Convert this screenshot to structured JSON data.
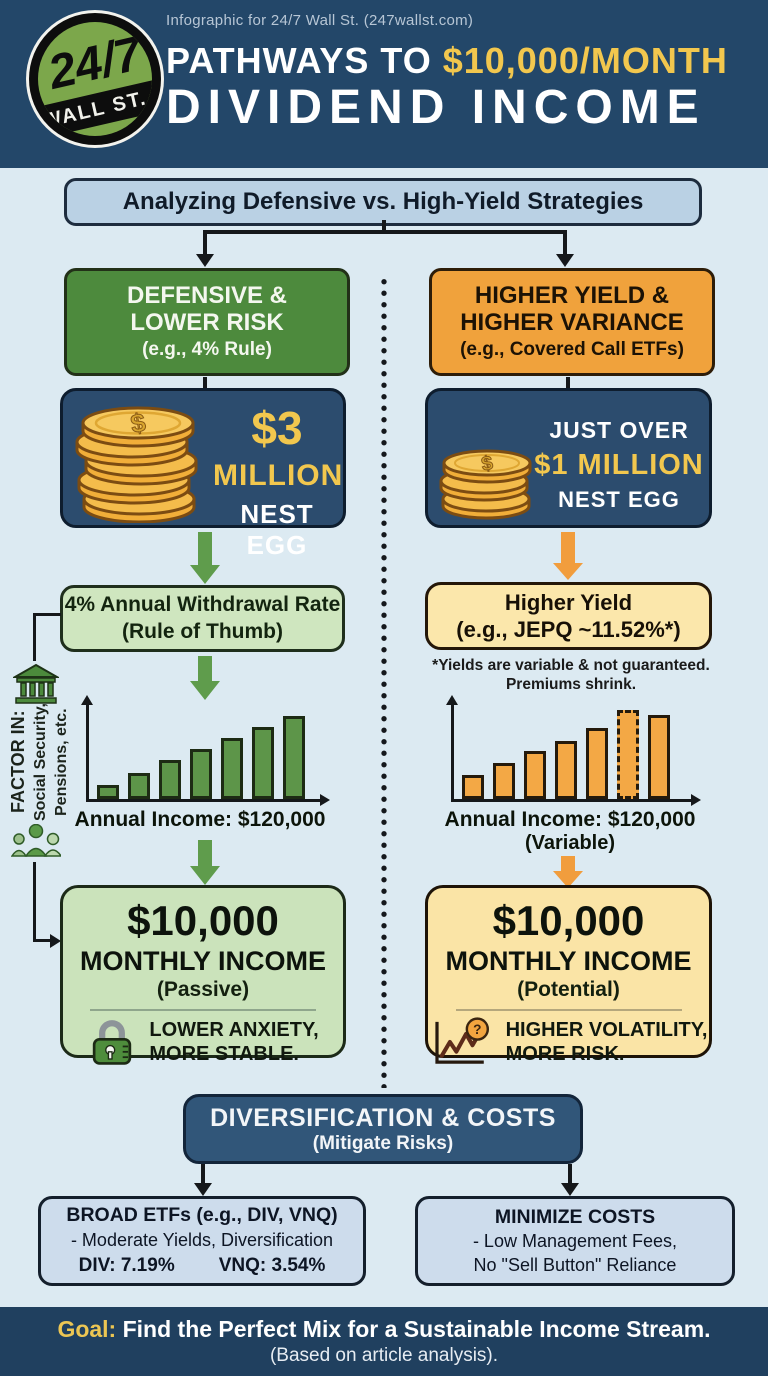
{
  "colors": {
    "header_navy": "#234769",
    "body_bg": "#dceaf2",
    "accent_yellow": "#f2c74e",
    "green": "#4d8a3d",
    "light_green": "#cfe6bf",
    "orange": "#f0a23c",
    "light_yellow": "#fbe7ab",
    "navy_box": "#2c4c6e",
    "light_blue_box": "#cddcec"
  },
  "header": {
    "credit": "Infographic for 24/7 Wall St. (247wallst.com)",
    "logo_top": "24/7",
    "logo_bottom": "WALL ST.",
    "title_white": "PATHWAYS TO ",
    "title_yellow": "$10,000/MONTH",
    "title_line2": "DIVIDEND INCOME"
  },
  "banner": "Analyzing Defensive vs. High-Yield Strategies",
  "left_column": {
    "strategy_title_line1": "DEFENSIVE &",
    "strategy_title_line2": "LOWER RISK",
    "strategy_subtitle": "(e.g., 4% Rule)",
    "nest_amount": "$3",
    "nest_unit": "MILLION",
    "nest_label": "NEST EGG",
    "withdrawal_line1": "4% Annual Withdrawal Rate",
    "withdrawal_line2": "(Rule of Thumb)",
    "chart_label": "Annual Income: $120,000",
    "income_amount": "$10,000",
    "income_label": "MONTHLY INCOME",
    "income_qualifier": "(Passive)",
    "income_note_line1": "LOWER ANXIETY,",
    "income_note_line2": "MORE STABLE."
  },
  "factor_in": {
    "title": "FACTOR IN:",
    "line1": "Social Security,",
    "line2": "Pensions, etc."
  },
  "right_column": {
    "strategy_title_line1": "HIGHER YIELD &",
    "strategy_title_line2": "HIGHER VARIANCE",
    "strategy_subtitle": "(e.g., Covered Call ETFs)",
    "nest_pre": "JUST OVER",
    "nest_amount": "$1 MILLION",
    "nest_label": "NEST EGG",
    "yield_line1": "Higher Yield",
    "yield_line2": "(e.g., JEPQ ~11.52%*)",
    "footnote_line1": "*Yields are variable & not guaranteed.",
    "footnote_line2": "Premiums shrink.",
    "chart_label": "Annual Income: $120,000",
    "chart_sublabel": "(Variable)",
    "income_amount": "$10,000",
    "income_label": "MONTHLY INCOME",
    "income_qualifier": "(Potential)",
    "income_note_line1": "HIGHER VOLATILITY,",
    "income_note_line2": "MORE RISK."
  },
  "diversification": {
    "title": "DIVERSIFICATION & COSTS",
    "subtitle": "(Mitigate Risks)"
  },
  "broad_etfs": {
    "title": "BROAD ETFs (e.g., DIV, VNQ)",
    "line2": "- Moderate Yields, Diversification",
    "div_yield": "DIV: 7.19%",
    "vnq_yield": "VNQ: 3.54%"
  },
  "minimize_costs": {
    "title": "MINIMIZE COSTS",
    "line2": "- Low Management Fees,",
    "line3": "No \"Sell Button\" Reliance"
  },
  "footer": {
    "goal_label": "Goal:",
    "goal_text": " Find the Perfect Mix for a Sustainable Income Stream.",
    "subtext": "(Based on article analysis)."
  },
  "icons": {
    "dollar": "$",
    "question": "?"
  },
  "chart_data": [
    {
      "type": "bar",
      "side": "left",
      "title": "",
      "xlabel": "Annual Income: $120,000",
      "ylabel": "",
      "categories": [
        "1",
        "2",
        "3",
        "4",
        "5",
        "6",
        "7"
      ],
      "values": [
        14,
        26,
        39,
        50,
        61,
        72,
        83
      ],
      "bar_color": "#5d9549",
      "bar_stroke": "#1d2b14",
      "grid": false
    },
    {
      "type": "bar",
      "side": "right",
      "title": "",
      "xlabel": "Annual Income: $120,000 (Variable)",
      "ylabel": "",
      "categories": [
        "1",
        "2",
        "3",
        "4",
        "5",
        "6",
        "7"
      ],
      "values": [
        24,
        36,
        48,
        58,
        71,
        89,
        84
      ],
      "bar_color": "#f3a845",
      "bar_stroke": "#241a0c",
      "dashed_bar_index": 5,
      "grid": false
    }
  ]
}
